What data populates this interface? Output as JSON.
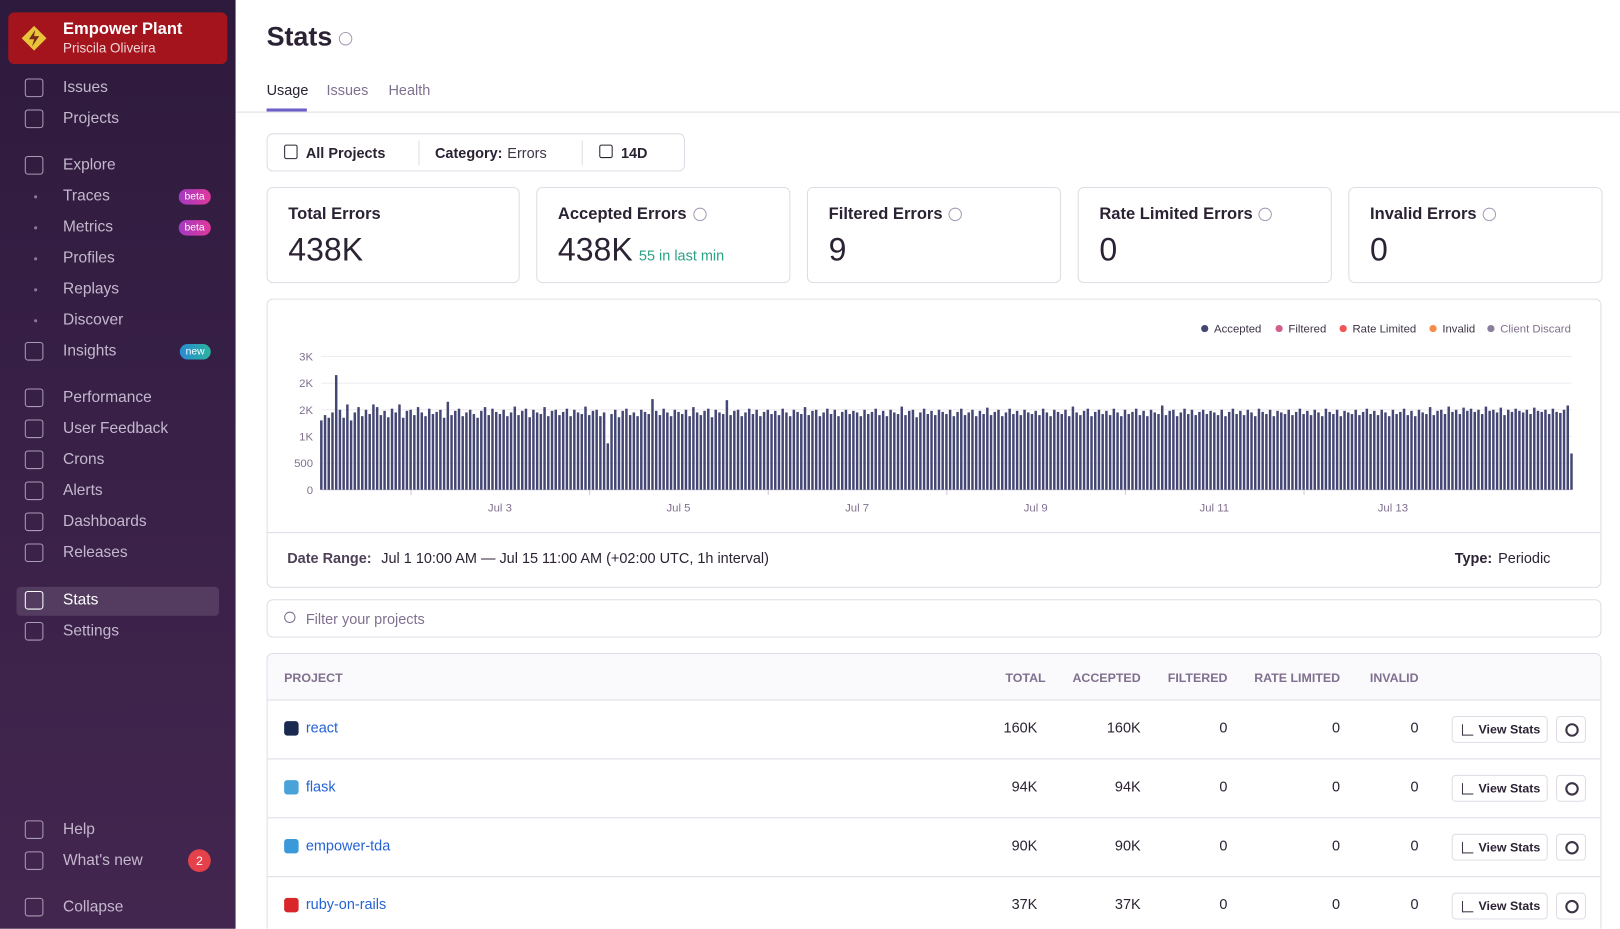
{
  "sidebar": {
    "org": "Empower Plant",
    "user": "Priscila Oliveira",
    "nav": [
      {
        "label": "Issues"
      },
      {
        "label": "Projects"
      },
      {
        "label": "Explore"
      },
      {
        "label": "Traces",
        "badge": "beta"
      },
      {
        "label": "Metrics",
        "badge": "beta"
      },
      {
        "label": "Profiles"
      },
      {
        "label": "Replays"
      },
      {
        "label": "Discover"
      },
      {
        "label": "Insights",
        "badge": "new"
      },
      {
        "label": "Performance"
      },
      {
        "label": "User Feedback"
      },
      {
        "label": "Crons"
      },
      {
        "label": "Alerts"
      },
      {
        "label": "Dashboards"
      },
      {
        "label": "Releases"
      },
      {
        "label": "Stats"
      },
      {
        "label": "Settings"
      }
    ],
    "footer": [
      {
        "label": "Help"
      },
      {
        "label": "What's new",
        "badge": "2"
      },
      {
        "label": "Collapse"
      }
    ]
  },
  "header": {
    "title": "Stats",
    "tabs": [
      "Usage",
      "Issues",
      "Health"
    ]
  },
  "filters": {
    "projects": "All Projects",
    "category_label": "Category:",
    "category": "Errors",
    "period": "14D"
  },
  "cards": [
    {
      "title": "Total Errors",
      "value": "438K"
    },
    {
      "title": "Accepted Errors",
      "value": "438K",
      "note": "55 in last min"
    },
    {
      "title": "Filtered Errors",
      "value": "9"
    },
    {
      "title": "Rate Limited Errors",
      "value": "0"
    },
    {
      "title": "Invalid Errors",
      "value": "0"
    }
  ],
  "chart_data": {
    "type": "bar",
    "categories": [
      null,
      null,
      null,
      null,
      null,
      null,
      null,
      null,
      null,
      null,
      null,
      null,
      null,
      null,
      null,
      null,
      null,
      null,
      null,
      null,
      null,
      null,
      null,
      null,
      null,
      null,
      null,
      null,
      null,
      null,
      null,
      null,
      null,
      null,
      null,
      null,
      null,
      null,
      null,
      null,
      null,
      null,
      null,
      null,
      null,
      null,
      null,
      null,
      "Jul 3",
      null,
      null,
      null,
      null,
      null,
      null,
      null,
      null,
      null,
      null,
      null,
      null,
      null,
      null,
      null,
      null,
      null,
      null,
      null,
      null,
      null,
      null,
      null,
      null,
      null,
      null,
      null,
      null,
      null,
      null,
      null,
      null,
      null,
      null,
      null,
      null,
      null,
      null,
      null,
      null,
      null,
      null,
      null,
      null,
      null,
      null,
      null,
      "Jul 5",
      null,
      null,
      null,
      null,
      null,
      null,
      null,
      null,
      null,
      null,
      null,
      null,
      null,
      null,
      null,
      null,
      null,
      null,
      null,
      null,
      null,
      null,
      null,
      null,
      null,
      null,
      null,
      null,
      null,
      null,
      null,
      null,
      null,
      null,
      null,
      null,
      null,
      null,
      null,
      null,
      null,
      null,
      null,
      null,
      null,
      null,
      null,
      "Jul 7",
      null,
      null,
      null,
      null,
      null,
      null,
      null,
      null,
      null,
      null,
      null,
      null,
      null,
      null,
      null,
      null,
      null,
      null,
      null,
      null,
      null,
      null,
      null,
      null,
      null,
      null,
      null,
      null,
      null,
      null,
      null,
      null,
      null,
      null,
      null,
      null,
      null,
      null,
      null,
      null,
      null,
      null,
      null,
      null,
      null,
      null,
      null,
      "Jul 9",
      null,
      null,
      null,
      null,
      null,
      null,
      null,
      null,
      null,
      null,
      null,
      null,
      null,
      null,
      null,
      null,
      null,
      null,
      null,
      null,
      null,
      null,
      null,
      null,
      null,
      null,
      null,
      null,
      null,
      null,
      null,
      null,
      null,
      null,
      null,
      null,
      null,
      null,
      null,
      null,
      null,
      null,
      null,
      null,
      null,
      null,
      null,
      "Jul 11",
      null,
      null,
      null,
      null,
      null,
      null,
      null,
      null,
      null,
      null,
      null,
      null,
      null,
      null,
      null,
      null,
      null,
      null,
      null,
      null,
      null,
      null,
      null,
      null,
      null,
      null,
      null,
      null,
      null,
      null,
      null,
      null,
      null,
      null,
      null,
      null,
      null,
      null,
      null,
      null,
      null,
      null,
      null,
      null,
      null,
      null,
      null,
      "Jul 13",
      null,
      null,
      null,
      null,
      null,
      null,
      null,
      null,
      null,
      null,
      null,
      null,
      null,
      null,
      null,
      null,
      null,
      null,
      null,
      null,
      null,
      null,
      null,
      null,
      null,
      null,
      null,
      null,
      null,
      null,
      null,
      null,
      null,
      null,
      null,
      null,
      null,
      null,
      null,
      null,
      null,
      null,
      null,
      null,
      null,
      null,
      null,
      null
    ],
    "series": [
      {
        "name": "Accepted",
        "color": "#444674",
        "values": [
          1300,
          1400,
          1350,
          1450,
          2150,
          1500,
          1350,
          1600,
          1300,
          1450,
          1550,
          1380,
          1500,
          1420,
          1600,
          1550,
          1400,
          1480,
          1360,
          1520,
          1450,
          1600,
          1350,
          1480,
          1500,
          1400,
          1550,
          1450,
          1380,
          1520,
          1420,
          1460,
          1500,
          1350,
          1650,
          1400,
          1480,
          1520,
          1380,
          1450,
          1500,
          1420,
          1350,
          1480,
          1550,
          1400,
          1520,
          1460,
          1420,
          1500,
          1380,
          1450,
          1560,
          1400,
          1480,
          1520,
          1360,
          1500,
          1450,
          1420,
          1550,
          1380,
          1480,
          1500,
          1400,
          1460,
          1520,
          1380,
          1500,
          1450,
          1420,
          1560,
          1400,
          1480,
          1500,
          1380,
          1450,
          870,
          1420,
          1500,
          1360,
          1480,
          1520,
          1400,
          1450,
          1380,
          1500,
          1460,
          1420,
          1700,
          1480,
          1400,
          1520,
          1450,
          1380,
          1500,
          1460,
          1420,
          1500,
          1380,
          1550,
          1450,
          1400,
          1480,
          1520,
          1360,
          1500,
          1450,
          1420,
          1680,
          1400,
          1480,
          1500,
          1380,
          1450,
          1520,
          1420,
          1500,
          1380,
          1460,
          1500,
          1420,
          1480,
          1400,
          1520,
          1450,
          1380,
          1500,
          1460,
          1420,
          1550,
          1400,
          1480,
          1500,
          1380,
          1450,
          1520,
          1420,
          1500,
          1380,
          1460,
          1500,
          1420,
          1480,
          1450,
          1380,
          1500,
          1420,
          1460,
          1520,
          1400,
          1480,
          1380,
          1500,
          1450,
          1420,
          1560,
          1400,
          1480,
          1500,
          1360,
          1450,
          1520,
          1420,
          1480,
          1400,
          1500,
          1460,
          1420,
          1500,
          1380,
          1460,
          1520,
          1400,
          1450,
          1500,
          1380,
          1480,
          1420,
          1540,
          1400,
          1460,
          1500,
          1380,
          1450,
          1520,
          1420,
          1480,
          1400,
          1500,
          1450,
          1420,
          1480,
          1400,
          1520,
          1450,
          1380,
          1500,
          1460,
          1420,
          1500,
          1380,
          1560,
          1450,
          1400,
          1480,
          1520,
          1380,
          1460,
          1500,
          1420,
          1480,
          1400,
          1520,
          1450,
          1380,
          1500,
          1420,
          1460,
          1520,
          1400,
          1480,
          1380,
          1500,
          1450,
          1420,
          1580,
          1400,
          1480,
          1500,
          1380,
          1450,
          1520,
          1420,
          1500,
          1400,
          1460,
          1500,
          1420,
          1480,
          1450,
          1400,
          1500,
          1380,
          1460,
          1520,
          1420,
          1480,
          1400,
          1500,
          1450,
          1380,
          1520,
          1460,
          1420,
          1500,
          1380,
          1480,
          1450,
          1420,
          1500,
          1400,
          1460,
          1520,
          1420,
          1480,
          1400,
          1500,
          1450,
          1380,
          1520,
          1460,
          1420,
          1500,
          1380,
          1480,
          1450,
          1420,
          1500,
          1400,
          1460,
          1520,
          1420,
          1480,
          1400,
          1500,
          1450,
          1380,
          1500,
          1420,
          1460,
          1520,
          1400,
          1480,
          1380,
          1500,
          1450,
          1420,
          1550,
          1400,
          1480,
          1500,
          1420,
          1560,
          1460,
          1500,
          1420,
          1540,
          1480,
          1520,
          1460,
          1500,
          1420,
          1560,
          1480,
          1500,
          1450,
          1540,
          1400,
          1500,
          1460,
          1520,
          1480,
          1450,
          1500,
          1420,
          1540,
          1480,
          1460,
          1500,
          1420,
          1520,
          1460,
          1440,
          1500,
          1580,
          680
        ]
      },
      {
        "name": "Filtered",
        "color": "#d1608e"
      },
      {
        "name": "Rate Limited",
        "color": "#f25456"
      },
      {
        "name": "Invalid",
        "color": "#f58c46"
      },
      {
        "name": "Client Discard",
        "color": "#8a7f9c"
      }
    ],
    "ylim": [
      0,
      2500
    ],
    "yticks": [
      0,
      500,
      {
        "value": 1000,
        "label": "1K"
      },
      {
        "value": 1500,
        "label": "2K"
      },
      {
        "value": 2000,
        "label": "2K"
      },
      {
        "value": 2500,
        "label": "3K"
      }
    ],
    "grid": true,
    "legend": "top-right"
  },
  "chart_footer": {
    "date_range_label": "Date Range:",
    "date_range": "Jul 1 10:00 AM — Jul 15 11:00 AM (+02:00 UTC, 1h interval)",
    "type_label": "Type:",
    "type": "Periodic"
  },
  "search_placeholder": "Filter your projects",
  "table": {
    "columns": [
      "PROJECT",
      "TOTAL",
      "ACCEPTED",
      "FILTERED",
      "RATE LIMITED",
      "INVALID"
    ],
    "button": "View Stats",
    "rows": [
      [
        "react",
        "160K",
        "160K",
        "0",
        "0",
        "0"
      ],
      [
        "flask",
        "94K",
        "94K",
        "0",
        "0",
        "0"
      ],
      [
        "empower-tda",
        "90K",
        "90K",
        "0",
        "0",
        "0"
      ],
      [
        "ruby-on-rails",
        "37K",
        "37K",
        "0",
        "0",
        "0"
      ]
    ]
  }
}
